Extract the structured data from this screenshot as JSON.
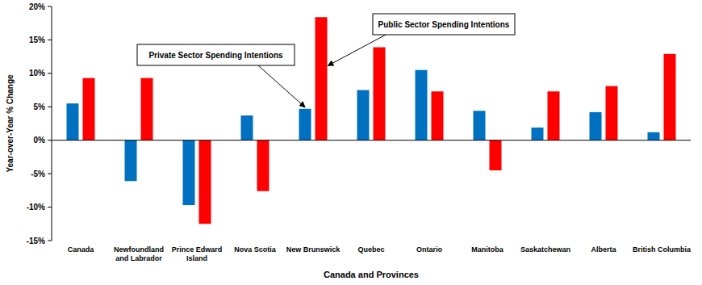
{
  "chart_data": {
    "type": "bar",
    "x_label": "Canada and Provinces",
    "y_label": "Year-over-Year % Change",
    "categories": [
      "Canada",
      "Newfoundland and Labrador",
      "Prince Edward Island",
      "Nova Scotia",
      "New Brunswick",
      "Quebec",
      "Ontario",
      "Manitoba",
      "Saskatchewan",
      "Alberta",
      "British Columbia"
    ],
    "series": [
      {
        "name": "Private Sector Spending Intentions",
        "color": "#0070c0",
        "values": [
          5.5,
          -6.1,
          -9.7,
          3.7,
          4.7,
          7.5,
          10.5,
          4.4,
          1.9,
          4.2,
          1.2
        ]
      },
      {
        "name": "Public Sector Spending Intentions",
        "color": "#ff0000",
        "values": [
          9.3,
          9.3,
          -12.5,
          -7.6,
          18.4,
          13.9,
          7.3,
          -4.5,
          7.3,
          8.1,
          12.9
        ]
      }
    ],
    "ylim": [
      -15,
      20
    ],
    "yticks": [
      {
        "value": -15,
        "label": "-15%"
      },
      {
        "value": -10,
        "label": "-10%"
      },
      {
        "value": -5,
        "label": "-5%"
      },
      {
        "value": 0,
        "label": "0%"
      },
      {
        "value": 5,
        "label": "5%"
      },
      {
        "value": 10,
        "label": "10%"
      },
      {
        "value": 15,
        "label": "15%"
      },
      {
        "value": 20,
        "label": "20%"
      }
    ],
    "grid": false
  }
}
